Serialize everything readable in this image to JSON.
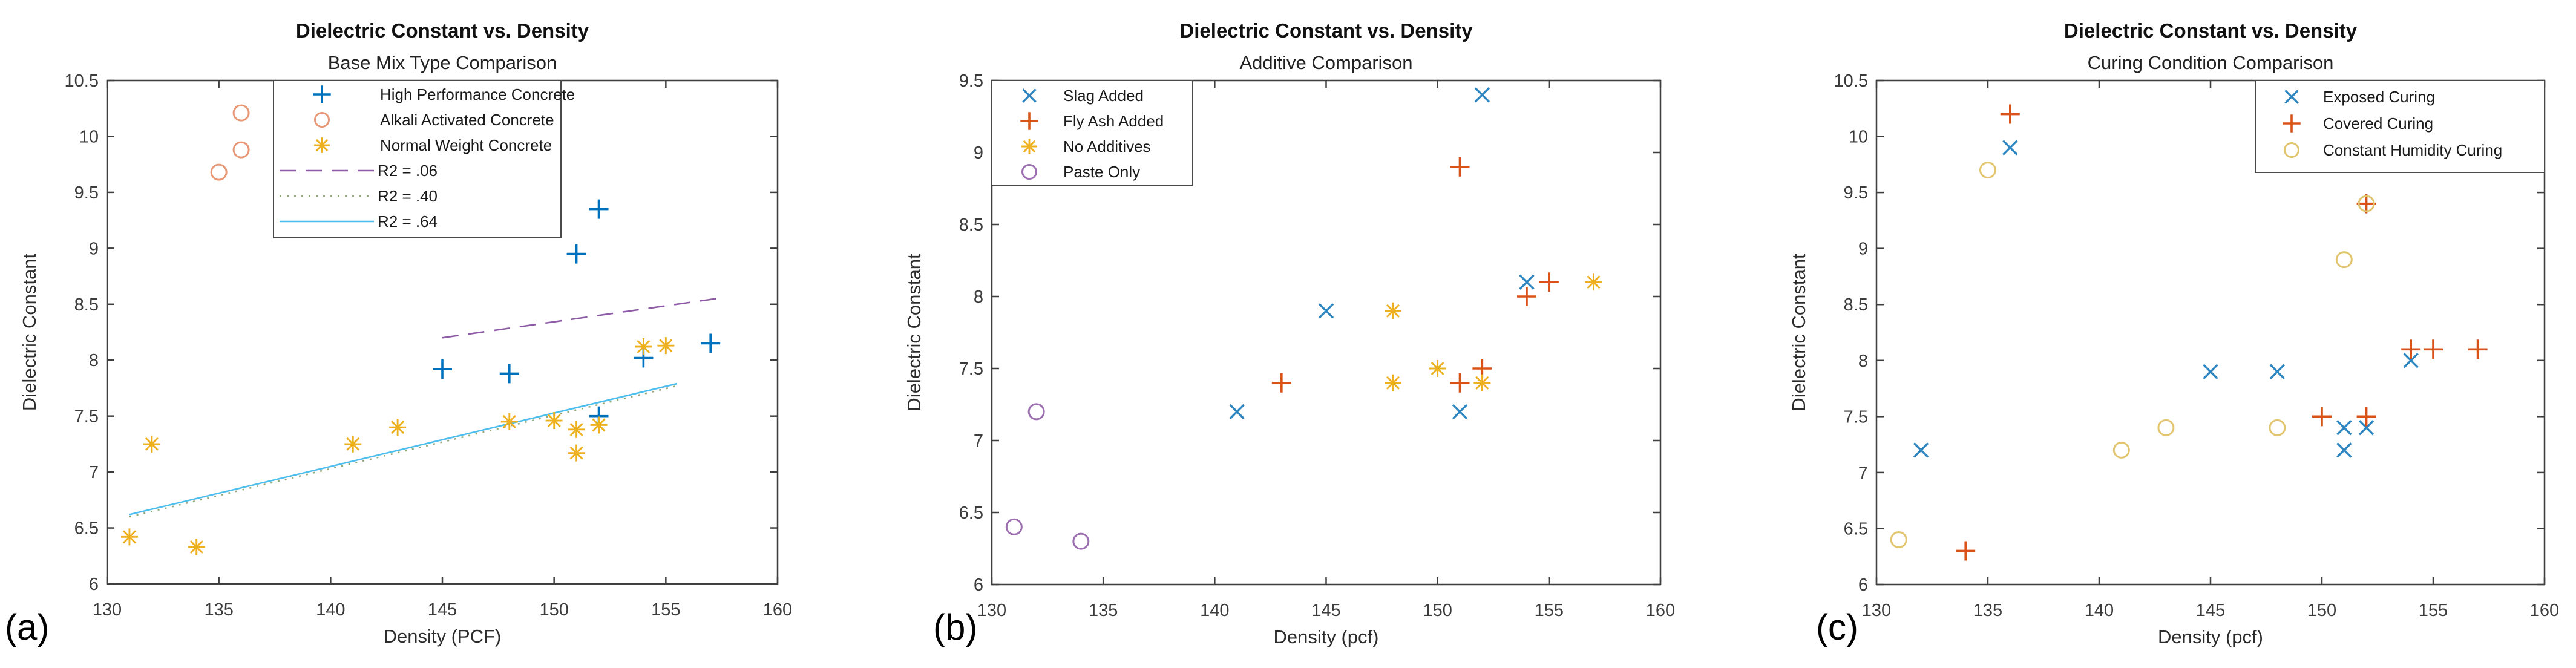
{
  "figure": {
    "background": "#ffffff",
    "axis_color": "#3f3f3f",
    "text_color": "#262626"
  },
  "chart_data": [
    {
      "id": "a",
      "panel_label": "(a)",
      "type": "scatter",
      "title": "Dielectric Constant vs. Density",
      "subtitle": "Base Mix Type Comparison",
      "xlabel": "Density (PCF)",
      "ylabel": "Dielectric Constant",
      "xlim": [
        130,
        160
      ],
      "ylim": [
        6,
        10.5
      ],
      "xticks": [
        130,
        135,
        140,
        145,
        150,
        155,
        160
      ],
      "yticks": [
        6,
        6.5,
        7,
        7.5,
        8,
        8.5,
        9,
        9.5,
        10,
        10.5
      ],
      "grid": false,
      "legend_position": "top-left-inset",
      "series": [
        {
          "name": "High Performance Concrete",
          "marker": "plus",
          "color": "#0072BD",
          "points": [
            [
              145,
              7.92
            ],
            [
              148,
              7.88
            ],
            [
              151,
              8.95
            ],
            [
              152,
              9.35
            ],
            [
              152,
              7.5
            ],
            [
              154,
              8.02
            ],
            [
              157,
              8.15
            ]
          ]
        },
        {
          "name": "Alkali Activated Concrete",
          "marker": "circle",
          "color": "#D95319",
          "opacity": 0.6,
          "points": [
            [
              135,
              9.68
            ],
            [
              136,
              10.21
            ],
            [
              136,
              9.88
            ]
          ]
        },
        {
          "name": "Normal Weight Concrete",
          "marker": "asterisk",
          "color": "#EDB120",
          "points": [
            [
              131,
              6.42
            ],
            [
              132,
              7.25
            ],
            [
              134,
              6.33
            ],
            [
              141,
              7.25
            ],
            [
              143,
              7.4
            ],
            [
              148,
              7.45
            ],
            [
              150,
              7.46
            ],
            [
              151,
              7.38
            ],
            [
              151,
              7.17
            ],
            [
              152,
              7.42
            ],
            [
              154,
              8.12
            ],
            [
              155,
              8.13
            ]
          ]
        }
      ],
      "trend_lines": [
        {
          "label": "R2 = .06",
          "style": "dashed",
          "color": "#8E5BA6",
          "from": [
            145,
            8.2
          ],
          "to": [
            157.6,
            8.56
          ]
        },
        {
          "label": "R2 = .40",
          "style": "dotted",
          "color": "#93A97A",
          "from": [
            131,
            6.6
          ],
          "to": [
            155.5,
            7.77
          ]
        },
        {
          "label": "R2 = .64",
          "style": "solid",
          "color": "#4DBEEE",
          "from": [
            131,
            6.62
          ],
          "to": [
            155.5,
            7.79
          ]
        }
      ]
    },
    {
      "id": "b",
      "panel_label": "(b)",
      "type": "scatter",
      "title": "Dielectric Constant vs. Density",
      "subtitle": "Additive Comparison",
      "xlabel": "Density (pcf)",
      "ylabel": "Dielectric Constant",
      "xlim": [
        130,
        160
      ],
      "ylim": [
        6,
        9.5
      ],
      "xticks": [
        130,
        135,
        140,
        145,
        150,
        155,
        160
      ],
      "yticks": [
        6,
        6.5,
        7,
        7.5,
        8,
        8.5,
        9,
        9.5
      ],
      "grid": false,
      "legend_position": "top-left-inset",
      "series": [
        {
          "name": "Slag Added",
          "marker": "x",
          "color": "#2E86C1",
          "points": [
            [
              141,
              7.2
            ],
            [
              145,
              7.9
            ],
            [
              151,
              7.2
            ],
            [
              152,
              9.4
            ],
            [
              154,
              8.1
            ]
          ]
        },
        {
          "name": "Fly Ash Added",
          "marker": "plus",
          "color": "#D95319",
          "points": [
            [
              143,
              7.4
            ],
            [
              151,
              8.9
            ],
            [
              151,
              7.4
            ],
            [
              152,
              7.5
            ],
            [
              154,
              8.0
            ],
            [
              155,
              8.1
            ]
          ]
        },
        {
          "name": "No Additives",
          "marker": "asterisk",
          "color": "#EDB120",
          "points": [
            [
              148,
              7.9
            ],
            [
              148,
              7.4
            ],
            [
              150,
              7.5
            ],
            [
              152,
              7.4
            ],
            [
              157,
              8.1
            ]
          ]
        },
        {
          "name": "Paste Only",
          "marker": "circle",
          "color": "#9C6FB0",
          "points": [
            [
              131,
              6.4
            ],
            [
              132,
              7.2
            ],
            [
              134,
              6.3
            ]
          ]
        }
      ],
      "trend_lines": []
    },
    {
      "id": "c",
      "panel_label": "(c)",
      "type": "scatter",
      "title": "Dielectric Constant vs. Density",
      "subtitle": "Curing Condition Comparison",
      "xlabel": "Density (pcf)",
      "ylabel": "Dielectric Constant",
      "xlim": [
        130,
        160
      ],
      "ylim": [
        6,
        10.5
      ],
      "xticks": [
        130,
        135,
        140,
        145,
        150,
        155,
        160
      ],
      "yticks": [
        6,
        6.5,
        7,
        7.5,
        8,
        8.5,
        9,
        9.5,
        10,
        10.5
      ],
      "grid": false,
      "legend_position": "top-right-inset",
      "series": [
        {
          "name": "Exposed Curing",
          "marker": "x",
          "color": "#2E86C1",
          "points": [
            [
              132,
              7.2
            ],
            [
              136,
              9.9
            ],
            [
              145,
              7.9
            ],
            [
              148,
              7.9
            ],
            [
              151,
              7.4
            ],
            [
              151,
              7.2
            ],
            [
              152,
              7.4
            ],
            [
              154,
              8.0
            ]
          ]
        },
        {
          "name": "Covered Curing",
          "marker": "plus",
          "color": "#D95319",
          "points": [
            [
              134,
              6.3
            ],
            [
              136,
              10.2
            ],
            [
              150,
              7.5
            ],
            [
              152,
              9.4
            ],
            [
              152,
              7.5
            ],
            [
              154,
              8.1
            ],
            [
              155,
              8.1
            ],
            [
              157,
              8.1
            ]
          ]
        },
        {
          "name": "Constant Humidity Curing",
          "marker": "circle",
          "color": "#E2C56F",
          "points": [
            [
              131,
              6.4
            ],
            [
              135,
              9.7
            ],
            [
              141,
              7.2
            ],
            [
              143,
              7.4
            ],
            [
              148,
              7.4
            ],
            [
              151,
              8.9
            ],
            [
              152,
              9.4
            ]
          ]
        }
      ],
      "trend_lines": []
    }
  ]
}
